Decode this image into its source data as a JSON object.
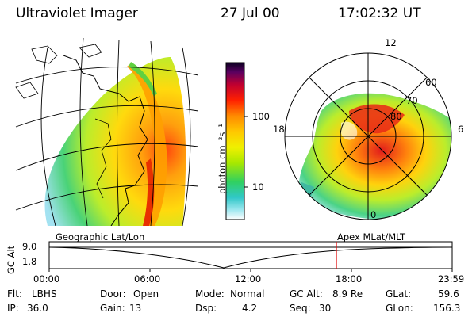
{
  "header": {
    "instrument": "Ultraviolet Imager",
    "date": "27 Jul 00",
    "time": "17:02:32 UT"
  },
  "colorbar": {
    "unit_label": "photon cm⁻²s⁻¹",
    "ticks": [
      "100",
      "10"
    ],
    "colors": [
      "#0a0020",
      "#5a0060",
      "#c00030",
      "#ff2000",
      "#ff8a00",
      "#ffc800",
      "#f0f000",
      "#a8e800",
      "#30d060",
      "#30c8c8",
      "#a0e8f0",
      "#ffffff"
    ]
  },
  "polar_plot": {
    "mlt_labels": [
      "12",
      "18",
      "6",
      "0"
    ],
    "lat_labels": [
      "60",
      "70",
      "80"
    ]
  },
  "timeline": {
    "left_label": "Geographic Lat/Lon",
    "right_label": "Apex MLat/MLT",
    "y_axis_label": "GC Alt",
    "y_ticks": [
      "9.0",
      "1.8"
    ],
    "x_ticks": [
      "00:00",
      "06:00",
      "12:00",
      "18:00",
      "23:59"
    ],
    "marker_color": "#e00000"
  },
  "info": {
    "flt_label": "Flt:",
    "flt_value": "LBHS",
    "door_label": "Door:",
    "door_value": "Open",
    "mode_label": "Mode:",
    "mode_value": "Normal",
    "gcalt_label": "GC Alt:",
    "gcalt_value": "8.9 Re",
    "glat_label": "GLat:",
    "glat_value": "59.6",
    "ip_label": "IP:",
    "ip_value": "36.0",
    "gain_label": "Gain:",
    "gain_value": "13",
    "dsp_label": "Dsp:",
    "dsp_value": "4.2",
    "seq_label": "Seq:",
    "seq_value": "30",
    "glon_label": "GLon:",
    "glon_value": "156.3"
  }
}
